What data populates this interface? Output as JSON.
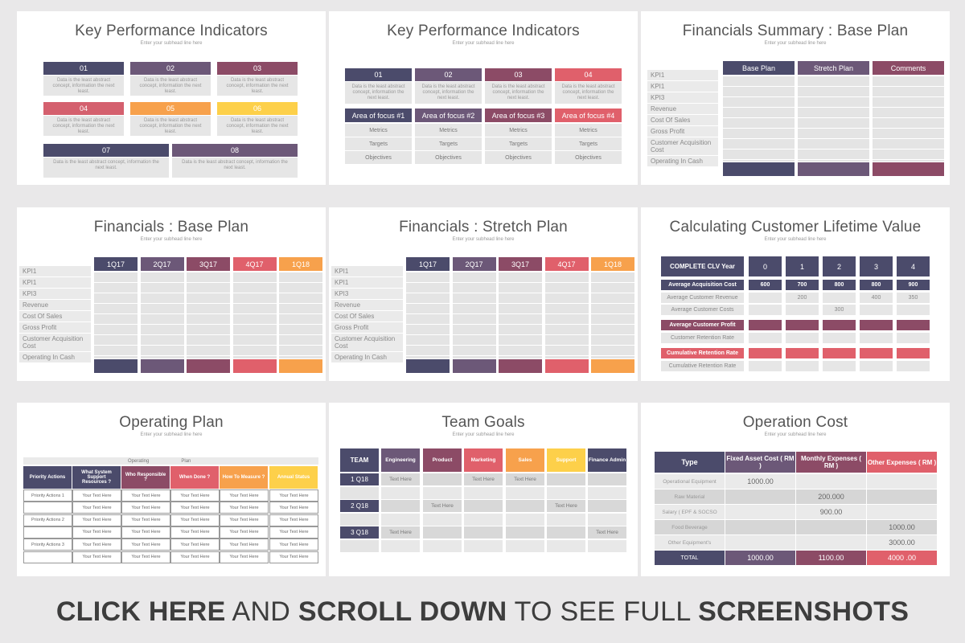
{
  "colors": {
    "navy": "#4b4b6b",
    "purple": "#6c5878",
    "plum": "#8c4b66",
    "rose": "#d4606e",
    "orange": "#f7a14c",
    "yellow": "#fdd04a",
    "red": "#e0606b"
  },
  "s1": {
    "title": "Key Performance Indicators",
    "subtitle": "Enter your subhead line here",
    "items": [
      {
        "n": "01",
        "t": "Data is the least abstract concept, information the next least."
      },
      {
        "n": "02",
        "t": "Data is the least abstract concept, information the next least."
      },
      {
        "n": "03",
        "t": "Data is the least abstract concept, information the next least."
      },
      {
        "n": "04",
        "t": "Data is the least abstract concept, information the next least."
      },
      {
        "n": "05",
        "t": "Data is the least abstract concept, information the next least."
      },
      {
        "n": "06",
        "t": "Data is the least abstract concept, information the next least."
      },
      {
        "n": "07",
        "t": "Data is the least abstract concept, information the next least."
      },
      {
        "n": "08",
        "t": "Data is the least abstract concept, information the next least."
      }
    ]
  },
  "s2": {
    "title": "Key Performance Indicators",
    "subtitle": "Enter your subhead line here",
    "nums": [
      "01",
      "02",
      "03",
      "04"
    ],
    "desc": "Data is the least abstract concept, information the next least.",
    "areas": [
      "Area of focus #1",
      "Area of focus #2",
      "Area of focus #3",
      "Area of focus #4"
    ],
    "rows": [
      "Metrics",
      "Targets",
      "Objectives"
    ]
  },
  "s3": {
    "title": "Financials Summary : Base Plan",
    "subtitle": "Enter your subhead line here",
    "cols": [
      "Base Plan",
      "Stretch Plan",
      "Comments"
    ],
    "rows": [
      "KPI1",
      "KPI1",
      "KPI3",
      "Revenue",
      "Cost Of Sales",
      "Gross Profit",
      "Customer Acquisition Cost",
      "Operating In Cash"
    ]
  },
  "s4": {
    "title": "Financials : Base Plan",
    "subtitle": "Enter your subhead line here",
    "cols": [
      "1Q17",
      "2Q17",
      "3Q17",
      "4Q17",
      "1Q18"
    ],
    "rows": [
      "KPI1",
      "KPI1",
      "KPI3",
      "Revenue",
      "Cost Of Sales",
      "Gross Profit",
      "Customer Acquisition Cost",
      "Operating In Cash"
    ]
  },
  "s5": {
    "title": "Financials : Stretch Plan",
    "subtitle": "Enter your subhead line here",
    "cols": [
      "1Q17",
      "2Q17",
      "3Q17",
      "4Q17",
      "1Q18"
    ],
    "rows": [
      "KPI1",
      "KPI1",
      "KPI3",
      "Revenue",
      "Cost Of Sales",
      "Gross Profit",
      "Customer Acquisition Cost",
      "Operating In Cash"
    ]
  },
  "s6": {
    "title": "Calculating Customer Lifetime Value",
    "subtitle": "Enter your subhead line here",
    "header": "COMPLETE CLV Year",
    "years": [
      "0",
      "1",
      "2",
      "3",
      "4"
    ],
    "rows": [
      {
        "label": "Average Acquisition Cost",
        "type": "navy",
        "vals": [
          "600",
          "700",
          "800",
          "800",
          "900"
        ]
      },
      {
        "label": "Average Customer Revenue",
        "type": "plain",
        "vals": [
          "",
          "200",
          "",
          "400",
          "350"
        ]
      },
      {
        "label": "Average Customer Costs",
        "type": "plain",
        "vals": [
          "",
          "",
          "300",
          "",
          ""
        ]
      },
      {
        "label": "Average Customer Profit",
        "type": "plum",
        "vals": [
          "",
          "",
          "",
          "",
          ""
        ]
      },
      {
        "label": "Customer Retention Rate",
        "type": "plain",
        "vals": [
          "",
          "",
          "",
          "",
          ""
        ]
      },
      {
        "label": "Cumulative Retention Rate",
        "type": "rose",
        "vals": [
          "",
          "",
          "",
          "",
          ""
        ]
      },
      {
        "label": "Cumulative Retention Rate",
        "type": "plain",
        "vals": [
          "",
          "",
          "",
          "",
          ""
        ]
      }
    ]
  },
  "s7": {
    "title": "Operating Plan",
    "subtitle": "Enter your subhead line here",
    "band": [
      "Operating",
      "Plan"
    ],
    "cols": [
      "Priority Actions",
      "What System Support Resources ?",
      "Who Responsible ?",
      "When Done ?",
      "How To Measure ?",
      "Annual Status"
    ],
    "cell": "Your Text Here",
    "actions": [
      "Priority Actions 1",
      "",
      "Priority Actions 2",
      "",
      "Priority Actions 3",
      ""
    ]
  },
  "s8": {
    "title": "Team Goals",
    "subtitle": "Enter your subhead line here",
    "cols": [
      "TEAM",
      "Engineering",
      "Product",
      "Marketing",
      "Sales",
      "Support",
      "Finance Admin"
    ],
    "quarters": [
      "1 Q18",
      "2 Q18",
      "3 Q18"
    ],
    "cell": "Text Here"
  },
  "s9": {
    "title": "Operation Cost",
    "subtitle": "Enter your subhead line here",
    "cols": [
      "Type",
      "Fixed Asset Cost ( RM )",
      "Monthly Expenses ( RM )",
      "Other Expenses ( RM )"
    ],
    "rows": [
      [
        "Operational Equipment",
        "1000.00",
        "",
        ""
      ],
      [
        "Raw Material",
        "",
        "200.000",
        ""
      ],
      [
        "Salary ( EPF & SOCSO",
        "",
        "900.00",
        ""
      ],
      [
        "Food Beverage",
        "",
        "",
        "1000.00"
      ],
      [
        "Other Equipment's",
        "",
        "",
        "3000.00"
      ]
    ],
    "total": [
      "TOTAL",
      "1000.00",
      "1100.00",
      "4000 .00"
    ]
  },
  "footer": {
    "p1": "CLICK HERE",
    "p2": " AND ",
    "p3": "SCROLL DOWN",
    "p4": " TO SEE FULL ",
    "p5": "SCREENSHOTS"
  }
}
